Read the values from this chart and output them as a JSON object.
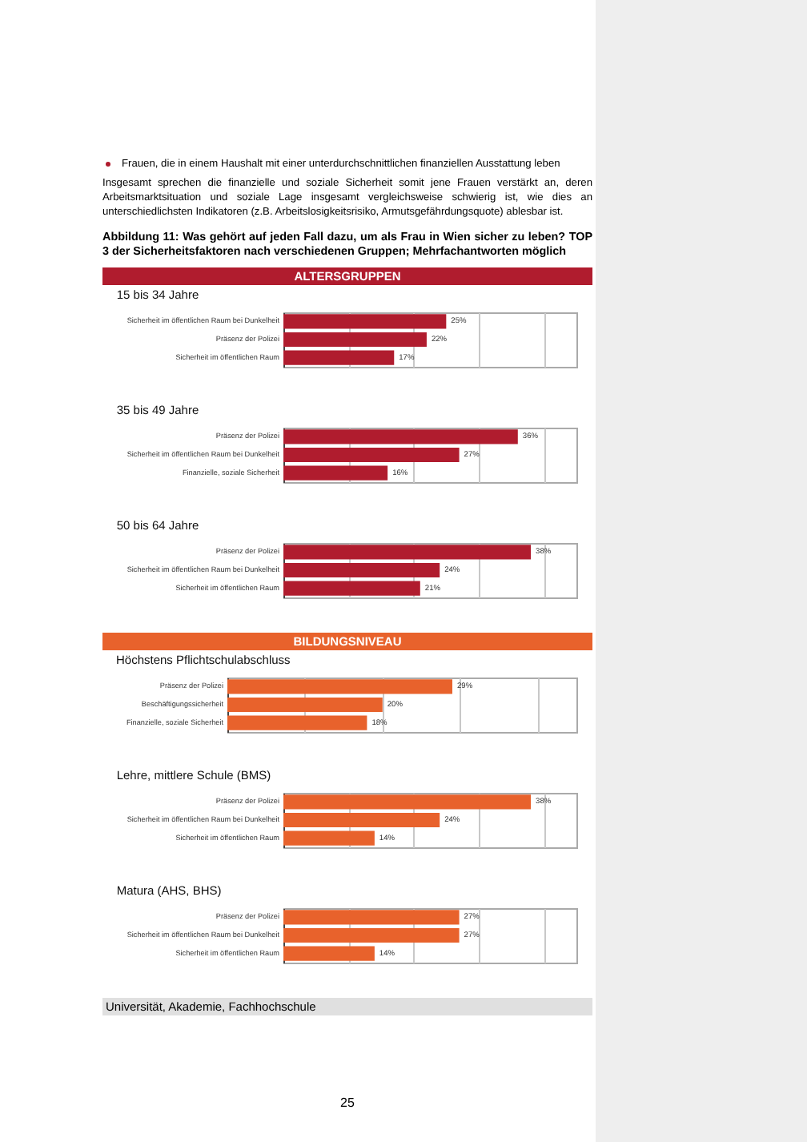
{
  "chart_data": [
    {
      "type": "bar",
      "orientation": "horizontal",
      "title": "ALTERSGRUPPEN",
      "subtitle": "15 bis 34 Jahre",
      "annotations": [
        "Frauen, die in einem Haushalt mit einer unterdurchschnittlichen finanziellen Ausstattung leben",
        "Insgesamt sprechen die finanzielle und soziale Sicherheit somit jene Frauen verstärkt an, deren Arbeitsmarktsituation und soziale Lage insgesamt vergleichsweise schwierig ist, wie dies an unterschiedlichsten Indikatoren (z.B. Arbeitslosigkeitsrisiko, Armutsgefährdungsquote) ablesbar ist.",
        "Abbildung 11: Was gehört auf jeden Fall dazu, um als Frau in Wien sicher zu leben? TOP 3 der Sicherheitsfaktoren nach verschiedenen Gruppen; Mehrfachantworten möglich"
      ],
      "categories": [
        "Sicherheit im öffentlichen Raum bei Dunkelheit",
        "Präsenz der Polizei",
        "Sicherheit im öffentlichen Raum"
      ],
      "values": [
        25,
        22,
        17
      ],
      "value_labels": [
        "25%",
        "22%",
        "17%"
      ],
      "color": "#b01c2e",
      "xlim": [
        0,
        45
      ],
      "grid": "x",
      "tick_labels": "y"
    },
    {
      "type": "bar",
      "orientation": "horizontal",
      "subtitle": "35 bis 49 Jahre",
      "categories": [
        "Präsenz der Polizei",
        "Sicherheit im öffentlichen Raum bei Dunkelheit",
        "Finanzielle, soziale Sicherheit"
      ],
      "values": [
        36,
        27,
        16
      ],
      "value_labels": [
        "36%",
        "27%",
        "16%"
      ],
      "color": "#b01c2e",
      "xlim": [
        0,
        45
      ],
      "grid": "x",
      "tick_labels": "y"
    },
    {
      "type": "bar",
      "orientation": "horizontal",
      "subtitle": "50 bis 64 Jahre",
      "categories": [
        "Präsenz der Polizei",
        "Sicherheit im öffentlichen Raum bei Dunkelheit",
        "Sicherheit im öffentlichen Raum"
      ],
      "values": [
        38,
        24,
        21
      ],
      "value_labels": [
        "38%",
        "24%",
        "21%"
      ],
      "color": "#b01c2e",
      "xlim": [
        0,
        45
      ],
      "grid": "x",
      "tick_labels": "y"
    },
    {
      "type": "bar",
      "orientation": "horizontal",
      "title": "BILDUNGSNIVEAU",
      "subtitle": "Höchstens Pflichtschulabschluss",
      "categories": [
        "Präsenz der Polizei",
        "Beschäftigungssicherheit",
        "Finanzielle, soziale Sicherheit"
      ],
      "values": [
        29,
        20,
        18
      ],
      "value_labels": [
        "29%",
        "20%",
        "18%"
      ],
      "color": "#e8622c",
      "xlim": [
        0,
        45
      ],
      "grid": "x",
      "tick_labels": "y"
    },
    {
      "type": "bar",
      "orientation": "horizontal",
      "subtitle": "Lehre, mittlere Schule (BMS)",
      "categories": [
        "Präsenz der Polizei",
        "Sicherheit im öffentlichen Raum bei Dunkelheit",
        "Sicherheit im öffentlichen Raum"
      ],
      "values": [
        38,
        24,
        14
      ],
      "value_labels": [
        "38%",
        "24%",
        "14%"
      ],
      "color": "#e8622c",
      "xlim": [
        0,
        45
      ],
      "grid": "x",
      "tick_labels": "y"
    },
    {
      "type": "bar",
      "orientation": "horizontal",
      "subtitle": "Matura (AHS, BHS)",
      "annotations": [
        "Universität, Akademie, Fachhochschule",
        "25"
      ],
      "categories": [
        "Präsenz der Polizei",
        "Sicherheit im öffentlichen Raum bei Dunkelheit",
        "Sicherheit im öffentlichen Raum"
      ],
      "values": [
        27,
        27,
        14
      ],
      "value_labels": [
        "27%",
        "27%",
        "14%"
      ],
      "color": "#e8622c",
      "xlim": [
        0,
        45
      ],
      "grid": "x",
      "tick_labels": "y"
    }
  ]
}
